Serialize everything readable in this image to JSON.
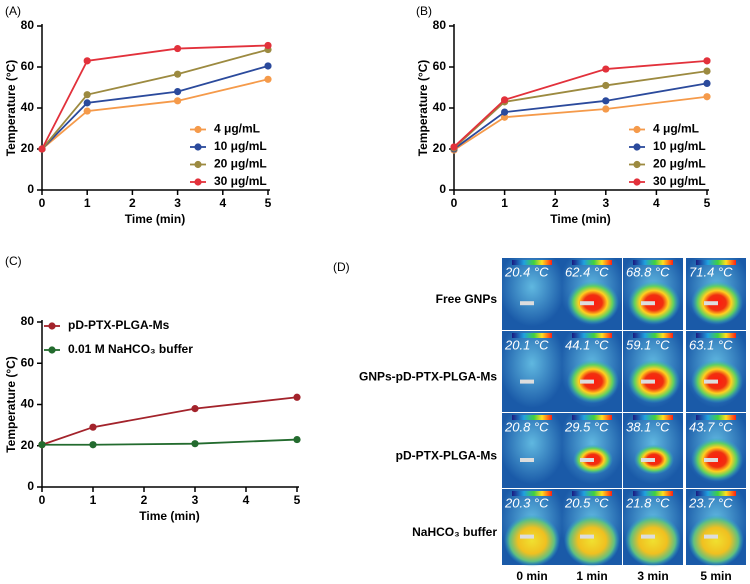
{
  "chart_data": [
    {
      "type": "line",
      "panel": "(A)",
      "ylabel": "Temperature (°C)",
      "xlabel": "Time (min)",
      "x": [
        0,
        1,
        3,
        5
      ],
      "xlim": [
        0,
        5
      ],
      "xticks": [
        0,
        1,
        2,
        3,
        4,
        5
      ],
      "ylim": [
        0,
        80
      ],
      "yticks": [
        0,
        20,
        40,
        60,
        80
      ],
      "legend": "lower right",
      "series": [
        {
          "name": "4 μg/mL",
          "color": "#f59a4a",
          "values": [
            20,
            38.5,
            43.5,
            54
          ]
        },
        {
          "name": "10 μg/mL",
          "color": "#2b4a9c",
          "values": [
            20,
            42.5,
            48,
            60.5
          ]
        },
        {
          "name": "20 μg/mL",
          "color": "#9c8a40",
          "values": [
            20,
            46.5,
            56.5,
            68.5
          ]
        },
        {
          "name": "30 μg/mL",
          "color": "#e2313b",
          "values": [
            20,
            63,
            69,
            70.5
          ]
        }
      ]
    },
    {
      "type": "line",
      "panel": "(B)",
      "ylabel": "Temperature (°C)",
      "xlabel": "Time (min)",
      "x": [
        0,
        1,
        3,
        5
      ],
      "xlim": [
        0,
        5
      ],
      "xticks": [
        0,
        1,
        2,
        3,
        4,
        5
      ],
      "ylim": [
        0,
        80
      ],
      "yticks": [
        0,
        20,
        40,
        60,
        80
      ],
      "legend": "lower right",
      "series": [
        {
          "name": "4 μg/mL",
          "color": "#f59a4a",
          "values": [
            19.5,
            35.5,
            39.5,
            45.5
          ]
        },
        {
          "name": "10 μg/mL",
          "color": "#2b4a9c",
          "values": [
            20,
            38,
            43.5,
            52
          ]
        },
        {
          "name": "20 μg/mL",
          "color": "#9c8a40",
          "values": [
            20.5,
            43,
            51,
            58
          ]
        },
        {
          "name": "30 μg/mL",
          "color": "#e2313b",
          "values": [
            21,
            44,
            59,
            63
          ]
        }
      ]
    },
    {
      "type": "line",
      "panel": "(C)",
      "ylabel": "Temperature (°C)",
      "xlabel": "Time (min)",
      "x": [
        0,
        1,
        3,
        5
      ],
      "xlim": [
        0,
        5
      ],
      "xticks": [
        0,
        1,
        2,
        3,
        4,
        5
      ],
      "ylim": [
        0,
        80
      ],
      "yticks": [
        0,
        20,
        40,
        60,
        80
      ],
      "legend": "upper left",
      "series": [
        {
          "name": "pD-PTX-PLGA-Ms",
          "color": "#a3232b",
          "values": [
            20.5,
            29,
            38,
            43.5
          ]
        },
        {
          "name": "0.01 M NaHCO₃ buffer",
          "color": "#236b2e",
          "values": [
            20.5,
            20.5,
            21,
            23
          ]
        }
      ]
    }
  ],
  "thermal_images": {
    "panel": "(D)",
    "columns": [
      "0 min",
      "1 min",
      "3 min",
      "5 min"
    ],
    "rows": [
      {
        "label": "Free GNPs",
        "cells": [
          "20.4 °C",
          "62.4 °C",
          "68.8 °C",
          "71.4 °C"
        ]
      },
      {
        "label": "GNPs-pD-PTX-PLGA-Ms",
        "cells": [
          "20.1 °C",
          "44.1 °C",
          "59.1 °C",
          "63.1 °C"
        ]
      },
      {
        "label": "pD-PTX-PLGA-Ms",
        "cells": [
          "20.8 °C",
          "29.5 °C",
          "38.1 °C",
          "43.7 °C"
        ]
      },
      {
        "label": "NaHCO₃ buffer",
        "cells": [
          "20.3 °C",
          "20.5 °C",
          "21.8 °C",
          "23.7 °C"
        ]
      }
    ]
  }
}
